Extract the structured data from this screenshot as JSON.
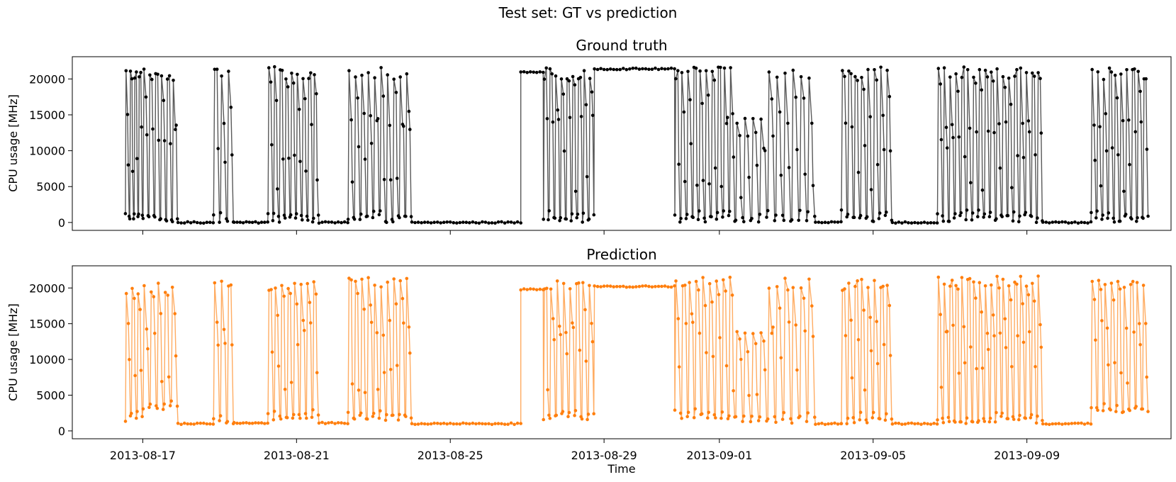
{
  "suptitle": "Test set: GT vs prediction",
  "colors": {
    "gt": "#000000",
    "pred": "#ff7f0e"
  },
  "chart_data": [
    {
      "type": "line",
      "title": "Ground truth",
      "ylabel": "CPU usage [MHz]",
      "xlabel": "",
      "ylim": [
        -1100,
        23100
      ],
      "xlim": [
        "2013-08-15T04:00",
        "2013-09-12T18:00"
      ],
      "yticks": [
        0,
        5000,
        10000,
        15000,
        20000
      ],
      "xticks": [],
      "grid": false,
      "series": [
        {
          "color": "#000000",
          "segments": [
            [
              "2013-08-16T13:00",
              "2013-08-17T00:00",
              "mixed",
              0,
              21500,
              4
            ],
            [
              "2013-08-17T00:00",
              "2013-08-17T22:00",
              "mixed",
              0,
              21500,
              6
            ],
            [
              "2013-08-17T22:00",
              "2013-08-18T20:00",
              "flat",
              0
            ],
            [
              "2013-08-18T20:00",
              "2013-08-19T09:00",
              "mixed",
              0,
              21600,
              3
            ],
            [
              "2013-08-19T09:00",
              "2013-08-20T06:00",
              "flat",
              0
            ],
            [
              "2013-08-20T06:00",
              "2013-08-21T14:00",
              "mixed",
              0,
              21700,
              9
            ],
            [
              "2013-08-21T14:00",
              "2013-08-22T08:00",
              "flat",
              0
            ],
            [
              "2013-08-22T08:00",
              "2013-08-24T00:00",
              "mixed",
              0,
              21600,
              10
            ],
            [
              "2013-08-24T00:00",
              "2013-08-26T20:00",
              "flat",
              0
            ],
            [
              "2013-08-26T20:00",
              "2013-08-27T10:00",
              "flat",
              21000
            ],
            [
              "2013-08-27T10:00",
              "2013-08-28T18:00",
              "mixed",
              0,
              21600,
              9
            ],
            [
              "2013-08-28T18:00",
              "2013-08-30T20:00",
              "flat",
              21400
            ],
            [
              "2013-08-30T20:00",
              "2013-09-01T10:00",
              "mixed",
              0,
              21700,
              10
            ],
            [
              "2013-09-01T10:00",
              "2013-09-02T06:00",
              "mixed",
              0,
              15000,
              4
            ],
            [
              "2013-09-02T06:00",
              "2013-09-03T12:00",
              "mixed",
              0,
              21500,
              6
            ],
            [
              "2013-09-03T12:00",
              "2013-09-04T04:00",
              "flat",
              0
            ],
            [
              "2013-09-04T04:00",
              "2013-09-05T12:00",
              "mixed",
              0,
              21700,
              8
            ],
            [
              "2013-09-05T12:00",
              "2013-09-06T16:00",
              "flat",
              0
            ],
            [
              "2013-09-06T16:00",
              "2013-09-09T10:00",
              "mixed",
              0,
              21700,
              18
            ],
            [
              "2013-09-09T10:00",
              "2013-09-10T16:00",
              "flat",
              0
            ],
            [
              "2013-09-10T16:00",
              "2013-09-12T04:00",
              "mixed",
              0,
              21600,
              10
            ]
          ]
        }
      ]
    },
    {
      "type": "line",
      "title": "Prediction",
      "ylabel": "CPU usage [MHz]",
      "xlabel": "Time",
      "ylim": [
        -1100,
        23100
      ],
      "xlim": [
        "2013-08-15T04:00",
        "2013-09-12T18:00"
      ],
      "yticks": [
        0,
        5000,
        10000,
        15000,
        20000
      ],
      "xticks": [
        "2013-08-17",
        "2013-08-21",
        "2013-08-25",
        "2013-08-29",
        "2013-09-01",
        "2013-09-05",
        "2013-09-09"
      ],
      "grid": false,
      "series": [
        {
          "color": "#ff7f0e",
          "segments": [
            [
              "2013-08-16T13:00",
              "2013-08-17T00:00",
              "mixed",
              1200,
              20500,
              3
            ],
            [
              "2013-08-17T00:00",
              "2013-08-17T22:00",
              "mixed",
              3000,
              20800,
              5
            ],
            [
              "2013-08-17T22:00",
              "2013-08-18T20:00",
              "flat",
              1000
            ],
            [
              "2013-08-18T20:00",
              "2013-08-19T09:00",
              "mixed",
              1000,
              21800,
              3
            ],
            [
              "2013-08-19T09:00",
              "2013-08-20T06:00",
              "flat",
              1100
            ],
            [
              "2013-08-20T06:00",
              "2013-08-21T14:00",
              "mixed",
              1500,
              21000,
              8
            ],
            [
              "2013-08-21T14:00",
              "2013-08-22T08:00",
              "flat",
              1100
            ],
            [
              "2013-08-22T08:00",
              "2013-08-24T00:00",
              "mixed",
              1200,
              21500,
              10
            ],
            [
              "2013-08-24T00:00",
              "2013-08-26T20:00",
              "flat",
              1000
            ],
            [
              "2013-08-26T20:00",
              "2013-08-27T10:00",
              "flat",
              19800
            ],
            [
              "2013-08-27T10:00",
              "2013-08-28T18:00",
              "mixed",
              1500,
              21000,
              8
            ],
            [
              "2013-08-28T18:00",
              "2013-08-30T20:00",
              "flat",
              20200
            ],
            [
              "2013-08-30T20:00",
              "2013-09-01T10:00",
              "mixed",
              1500,
              21600,
              9
            ],
            [
              "2013-09-01T10:00",
              "2013-09-02T06:00",
              "mixed",
              1100,
              14000,
              4
            ],
            [
              "2013-09-02T06:00",
              "2013-09-03T12:00",
              "mixed",
              1000,
              21500,
              6
            ],
            [
              "2013-09-03T12:00",
              "2013-09-04T04:00",
              "flat",
              1000
            ],
            [
              "2013-09-04T04:00",
              "2013-09-05T12:00",
              "mixed",
              1000,
              21200,
              8
            ],
            [
              "2013-09-05T12:00",
              "2013-09-06T16:00",
              "flat",
              1000
            ],
            [
              "2013-09-06T16:00",
              "2013-09-09T10:00",
              "mixed",
              1000,
              21800,
              18
            ],
            [
              "2013-09-09T10:00",
              "2013-09-10T16:00",
              "flat",
              1000
            ],
            [
              "2013-09-10T16:00",
              "2013-09-12T04:00",
              "mixed",
              2500,
              21400,
              9
            ]
          ]
        }
      ]
    }
  ]
}
